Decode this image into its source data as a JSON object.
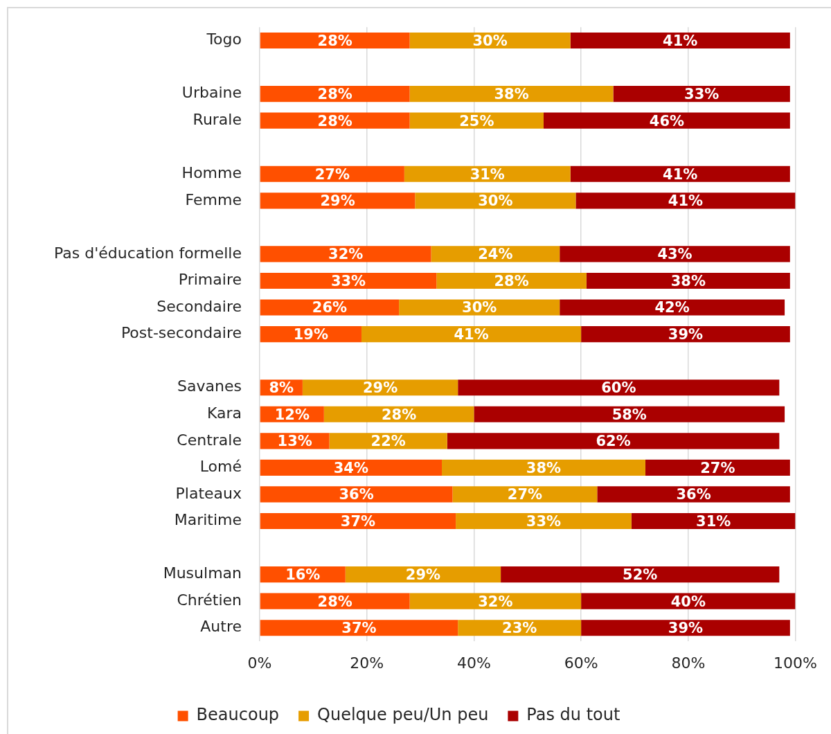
{
  "chart_data": {
    "type": "bar",
    "orientation": "horizontal",
    "stacked": true,
    "categories": [
      "Togo",
      null,
      "Urbaine",
      "Rurale",
      null,
      "Homme",
      "Femme",
      null,
      "Pas d'éducation formelle",
      "Primaire",
      "Secondaire",
      "Post-secondaire",
      null,
      "Savanes",
      "Kara",
      "Centrale",
      "Lomé",
      "Plateaux",
      "Maritime",
      null,
      "Musulman",
      "Chrétien",
      "Autre"
    ],
    "series": [
      {
        "name": "Beaucoup",
        "color": "#ff5000",
        "values": [
          28,
          null,
          28,
          28,
          null,
          27,
          29,
          null,
          32,
          33,
          26,
          19,
          null,
          8,
          12,
          13,
          34,
          36,
          36.6,
          null,
          16,
          28,
          37
        ],
        "value_labels": [
          "28%",
          null,
          "28%",
          "28%",
          null,
          "27%",
          "29%",
          null,
          "32%",
          "33%",
          "26%",
          "19%",
          null,
          "8%",
          "12%",
          "13%",
          "34%",
          "36%",
          "37%",
          null,
          "16%",
          "28%",
          "37%"
        ]
      },
      {
        "name": "Quelque peu/Un peu",
        "color": "#e69d00",
        "values": [
          30,
          null,
          38,
          25,
          null,
          31,
          30,
          null,
          24,
          28,
          30,
          41,
          null,
          29,
          28,
          22,
          38,
          27,
          32.8,
          null,
          29,
          32,
          23
        ],
        "value_labels": [
          "30%",
          null,
          "38%",
          "25%",
          null,
          "31%",
          "30%",
          null,
          "24%",
          "28%",
          "30%",
          "41%",
          null,
          "29%",
          "28%",
          "22%",
          "38%",
          "27%",
          "33%",
          null,
          "29%",
          "32%",
          "23%"
        ]
      },
      {
        "name": "Pas du tout",
        "color": "#aa0000",
        "values": [
          41,
          null,
          33,
          46,
          null,
          41,
          41,
          null,
          43,
          38,
          42,
          39,
          null,
          60,
          58,
          62,
          27,
          36,
          30.6,
          null,
          52,
          40,
          39
        ],
        "value_labels": [
          "41%",
          null,
          "33%",
          "46%",
          null,
          "41%",
          "41%",
          null,
          "43%",
          "38%",
          "42%",
          "39%",
          null,
          "60%",
          "58%",
          "62%",
          "27%",
          "36%",
          "31%",
          null,
          "52%",
          "40%",
          "39%"
        ]
      }
    ],
    "xlim": [
      0,
      100
    ],
    "xticks": [
      {
        "value": 0,
        "label": "0%"
      },
      {
        "value": 20,
        "label": "20%"
      },
      {
        "value": 40,
        "label": "40%"
      },
      {
        "value": 60,
        "label": "60%"
      },
      {
        "value": 80,
        "label": "80%"
      },
      {
        "value": 100,
        "label": "100%"
      }
    ],
    "grid": "x",
    "legend": "bottom"
  }
}
